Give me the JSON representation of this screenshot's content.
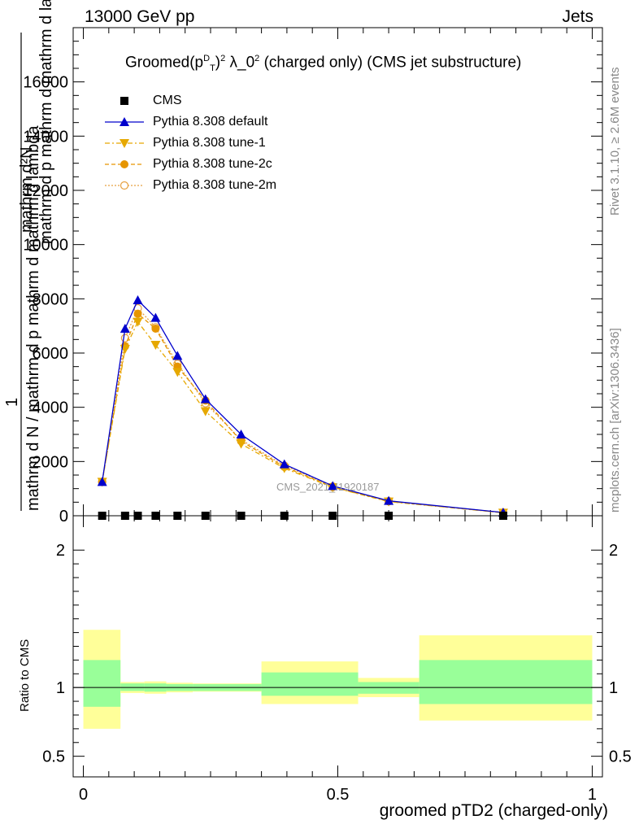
{
  "header": {
    "left": "13000 GeV pp",
    "right": "Jets"
  },
  "side_labels": {
    "rivet": "Rivet 3.1.10, ≥ 2.6M events",
    "mcplots": "mcplots.cern.ch [arXiv:1306.3436]"
  },
  "watermark": "CMS_2021_I1920187",
  "title": {
    "prefix": "Groomed",
    "expr_p": "(p",
    "expr_sup_d": "D",
    "expr_sub_t": "T",
    "expr_close": ")",
    "expr_sup_2": "2",
    "expr_lambda": " λ_0",
    "expr_sup_2b": "2",
    "suffix": "  (charged only) (CMS jet substructure)"
  },
  "ylabel_main": {
    "numerator": "mathrm d²N",
    "denominator": "mathrm d p mathrm d mathrm d lambda",
    "prefix": "1",
    "line2": "mathrm d N / mathrm d p mathrm d mathrm d lambda"
  },
  "ylabel_ratio": "Ratio to CMS",
  "xlabel": "groomed pTD2 (charged-only)",
  "legend": [
    {
      "name": "CMS",
      "color": "#000000",
      "marker": "square"
    },
    {
      "name": "Pythia 8.308 default",
      "color": "#0000cc",
      "marker": "triangle-up"
    },
    {
      "name": "Pythia 8.308 tune-1",
      "color": "#e6a800",
      "marker": "triangle-down"
    },
    {
      "name": "Pythia 8.308 tune-2c",
      "color": "#e69500",
      "marker": "circle"
    },
    {
      "name": "Pythia 8.308 tune-2m",
      "color": "#e6a040",
      "marker": "open-circle"
    }
  ],
  "chart_data": [
    {
      "type": "line",
      "panel": "main",
      "xlim": [
        -0.02,
        1.02
      ],
      "ylim": [
        0,
        18000
      ],
      "yticks": [
        0,
        2000,
        4000,
        6000,
        8000,
        10000,
        12000,
        14000,
        16000
      ],
      "ytick_labels": [
        "0",
        "2000",
        "4000",
        "6000",
        "8000",
        "10000",
        "12000",
        "14000",
        "16000"
      ],
      "x": [
        0.037,
        0.082,
        0.107,
        0.142,
        0.185,
        0.24,
        0.31,
        0.395,
        0.49,
        0.6,
        0.825
      ],
      "series": [
        {
          "name": "CMS",
          "values": [
            0,
            0,
            0,
            0,
            0,
            0,
            0,
            0,
            0,
            0,
            0
          ]
        },
        {
          "name": "Pythia 8.308 default",
          "values": [
            1250,
            6900,
            7950,
            7300,
            5900,
            4300,
            3000,
            1900,
            1100,
            550,
            120
          ]
        },
        {
          "name": "Pythia 8.308 tune-1",
          "values": [
            1250,
            6150,
            7150,
            6300,
            5300,
            3850,
            2650,
            1750,
            1050,
            520,
            110
          ]
        },
        {
          "name": "Pythia 8.308 tune-2c",
          "values": [
            1250,
            6250,
            7450,
            6900,
            5500,
            4250,
            2750,
            1800,
            1060,
            530,
            115
          ]
        },
        {
          "name": "Pythia 8.308 tune-2m",
          "values": [
            1250,
            6550,
            7650,
            6950,
            5600,
            4150,
            2800,
            1850,
            1080,
            540,
            118
          ]
        }
      ]
    },
    {
      "type": "band",
      "panel": "ratio",
      "xlim": [
        -0.02,
        1.02
      ],
      "ylim": [
        0.35,
        2.25
      ],
      "yticks": [
        0.5,
        1,
        2
      ],
      "ytick_labels": [
        "0.5",
        "1",
        "2"
      ],
      "xticks": [
        0,
        0.5,
        1
      ],
      "xtick_labels": [
        "0",
        "0.5",
        "1"
      ],
      "reference": 1,
      "bins": [
        {
          "x0": 0.0,
          "x1": 0.073,
          "yellow": [
            0.7,
            1.42
          ],
          "green": [
            0.86,
            1.2
          ]
        },
        {
          "x0": 0.073,
          "x1": 0.12,
          "yellow": [
            0.96,
            1.04
          ],
          "green": [
            0.975,
            1.03
          ]
        },
        {
          "x0": 0.12,
          "x1": 0.163,
          "yellow": [
            0.955,
            1.045
          ],
          "green": [
            0.97,
            1.03
          ]
        },
        {
          "x0": 0.163,
          "x1": 0.215,
          "yellow": [
            0.965,
            1.035
          ],
          "green": [
            0.975,
            1.025
          ]
        },
        {
          "x0": 0.215,
          "x1": 0.35,
          "yellow": [
            0.97,
            1.03
          ],
          "green": [
            0.975,
            1.025
          ]
        },
        {
          "x0": 0.35,
          "x1": 0.54,
          "yellow": [
            0.88,
            1.19
          ],
          "green": [
            0.94,
            1.11
          ]
        },
        {
          "x0": 0.54,
          "x1": 0.66,
          "yellow": [
            0.93,
            1.07
          ],
          "green": [
            0.955,
            1.04
          ]
        },
        {
          "x0": 0.66,
          "x1": 1.0,
          "yellow": [
            0.76,
            1.38
          ],
          "green": [
            0.88,
            1.2
          ]
        }
      ]
    }
  ]
}
